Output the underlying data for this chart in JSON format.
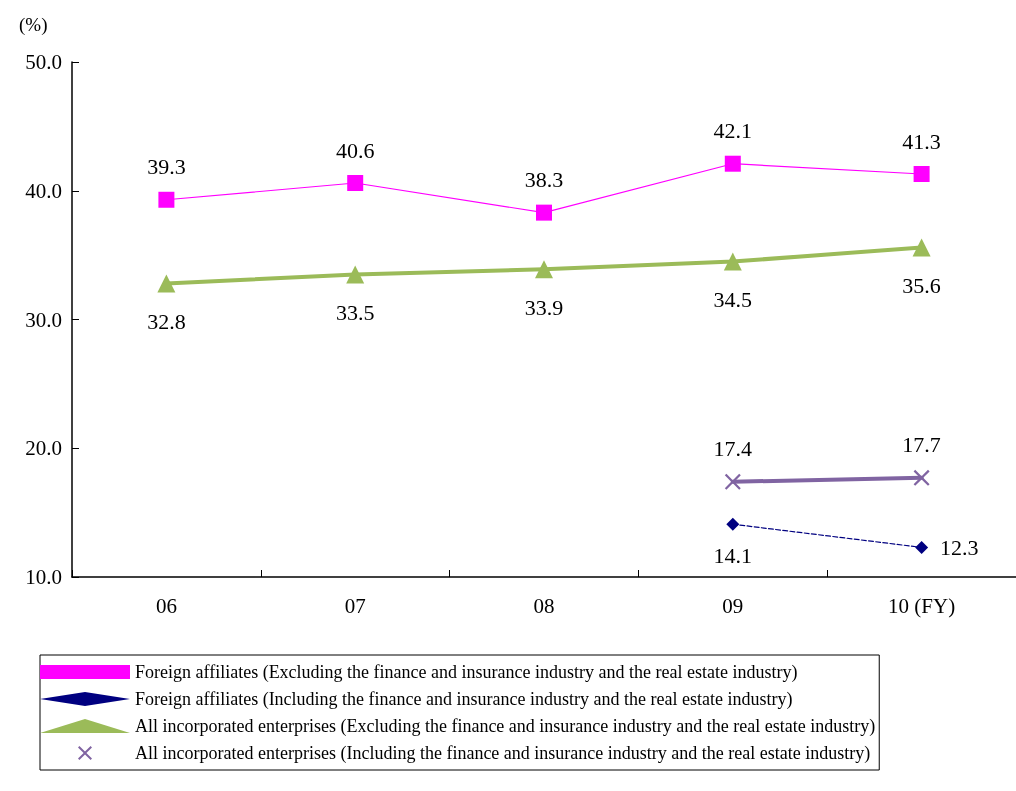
{
  "chart_data": {
    "type": "line",
    "ylabel": "(%)",
    "categories": [
      "06",
      "07",
      "08",
      "09",
      "10 (FY)"
    ],
    "ylim": [
      10,
      50
    ],
    "yticks": [
      {
        "value": 10,
        "label": "10.0"
      },
      {
        "value": 20,
        "label": "20.0"
      },
      {
        "value": 30,
        "label": "30.0"
      },
      {
        "value": 40,
        "label": "40.0"
      },
      {
        "value": 50,
        "label": "50.0"
      }
    ],
    "grid": false,
    "legend": "bottom",
    "data_labels": true,
    "series": [
      {
        "name": "Foreign affiliates (Excluding the finance and insurance industry and the real estate industry)",
        "color": "#ff00ff",
        "marker": "square",
        "line_style": "solid",
        "values": [
          39.3,
          40.6,
          38.3,
          42.1,
          41.3
        ]
      },
      {
        "name": "Foreign affiliates (Including the finance and insurance industry and the real estate industry)",
        "color": "#000080",
        "marker": "diamond",
        "line_style": "dashed",
        "values": [
          null,
          null,
          null,
          14.1,
          12.3
        ]
      },
      {
        "name": "All incorporated enterprises (Excluding the finance and insurance industry and the real estate industry)",
        "color": "#9bbb59",
        "marker": "triangle",
        "line_style": "solid",
        "values": [
          32.8,
          33.5,
          33.9,
          34.5,
          35.6
        ]
      },
      {
        "name": "All incorporated enterprises (Including the finance and insurance industry and the real estate industry)",
        "color": "#8064a2",
        "marker": "cross",
        "line_style": "solid",
        "values": [
          null,
          null,
          null,
          17.4,
          17.7
        ]
      }
    ]
  }
}
